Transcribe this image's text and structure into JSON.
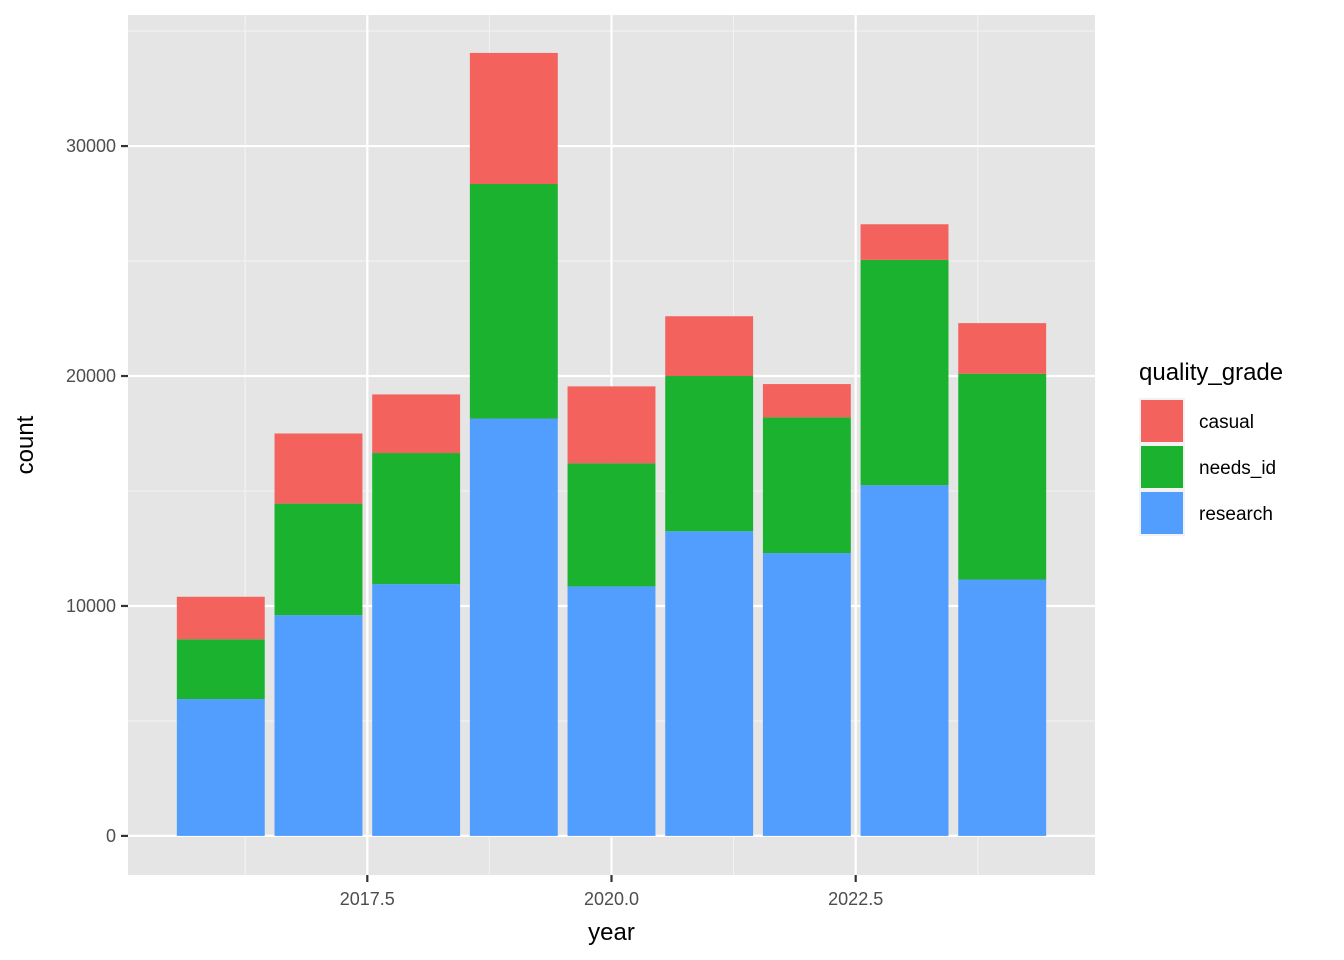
{
  "chart_data": {
    "type": "bar",
    "stacked": true,
    "xlabel": "year",
    "ylabel": "count",
    "x": [
      2016,
      2017,
      2018,
      2019,
      2020,
      2021,
      2022,
      2023,
      2024
    ],
    "xlim": [
      2015.05,
      2024.95
    ],
    "x_ticks": [
      2017.5,
      2020.0,
      2022.5
    ],
    "x_tick_labels": [
      "2017.5",
      "2020.0",
      "2022.5"
    ],
    "ylim": [
      -1700,
      35700
    ],
    "y_ticks": [
      0,
      10000,
      20000,
      30000
    ],
    "y_tick_labels": [
      "0",
      "10000",
      "20000",
      "30000"
    ],
    "grid": true,
    "legend_position": "right",
    "legend_title": "quality_grade",
    "series": [
      {
        "name": "research",
        "color": "#529EFF",
        "values": [
          5950,
          9600,
          10950,
          18150,
          10850,
          13250,
          12300,
          15250,
          11150
        ]
      },
      {
        "name": "needs_id",
        "color": "#1AB22E",
        "values": [
          2600,
          4850,
          5700,
          10200,
          5350,
          6750,
          5900,
          9800,
          8950
        ]
      },
      {
        "name": "casual",
        "color": "#F3625D",
        "values": [
          1850,
          3050,
          2550,
          5700,
          3350,
          2600,
          1450,
          1550,
          2200
        ]
      }
    ],
    "legend_order": [
      "casual",
      "needs_id",
      "research"
    ]
  }
}
